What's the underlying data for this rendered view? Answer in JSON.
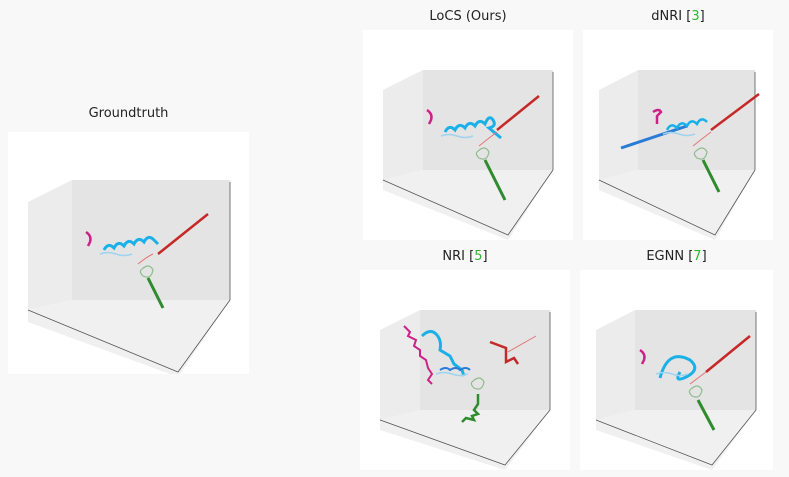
{
  "panels": [
    {
      "id": "gt",
      "title": "Groundtruth",
      "cite": ""
    },
    {
      "id": "locs",
      "title": "LoCS (Ours)",
      "cite": ""
    },
    {
      "id": "dnri",
      "title": "dNRI",
      "cite": "3"
    },
    {
      "id": "nri",
      "title": "NRI",
      "cite": "5"
    },
    {
      "id": "egnn",
      "title": "EGNN",
      "cite": "7"
    }
  ],
  "colors": {
    "cyan": "#1ab0e8",
    "blue": "#2a7bd6",
    "magenta": "#cc2288",
    "red": "#c62828",
    "green": "#2e8b2e",
    "light_green": "#8fbc8f",
    "light_red": "#e57373"
  }
}
